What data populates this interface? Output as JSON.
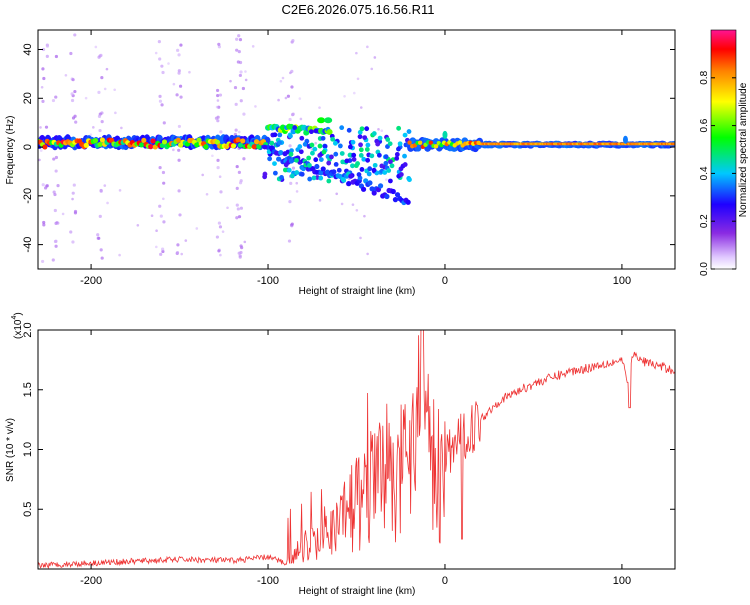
{
  "title": "C2E6.2026.075.16.56.R11",
  "chart_data": [
    {
      "type": "heatmap",
      "name": "spectrogram",
      "xlabel": "Height of straight line (km)",
      "ylabel": "Frequency (Hz)",
      "xlim": [
        -230,
        130
      ],
      "ylim": [
        -50,
        48
      ],
      "xticks": [
        -200,
        -100,
        0,
        100
      ],
      "yticks": [
        -40,
        -20,
        0,
        20,
        40
      ],
      "xtick_labels": [
        "-200",
        "-100",
        "0",
        "100"
      ],
      "ytick_labels": [
        "-40",
        "-20",
        "0",
        "20",
        "40"
      ],
      "colorbar": {
        "label": "Normalized spectral amplitude",
        "range": [
          0,
          1
        ],
        "ticks": [
          0.0,
          0.2,
          0.4,
          0.6,
          0.8
        ],
        "tick_labels": [
          "0.0",
          "0.2",
          "0.4",
          "0.6",
          "0.8"
        ]
      }
    },
    {
      "type": "line",
      "name": "snr",
      "xlabel": "Height of straight line (km)",
      "ylabel": "SNR (10 * v/v)",
      "scale_label": "(x10",
      "scale_exp": "4",
      "scale_close": ")",
      "xlim": [
        -230,
        130
      ],
      "ylim": [
        0,
        2.0
      ],
      "xticks": [
        -200,
        -100,
        0,
        100
      ],
      "yticks": [
        0.5,
        1.0,
        1.5,
        2.0
      ],
      "xtick_labels": [
        "-200",
        "-100",
        "0",
        "100"
      ],
      "ytick_labels": [
        "0.5",
        "1.0",
        "1.5",
        "2.0"
      ],
      "color": "#ee3333",
      "series": [
        {
          "name": "SNR",
          "x": [
            -230,
            -200,
            -150,
            -120,
            -100,
            -90,
            -80,
            -70,
            -60,
            -50,
            -45,
            -40,
            -35,
            -30,
            -25,
            -20,
            -15,
            -12,
            -10,
            -5,
            0,
            10,
            20,
            30,
            40,
            50,
            60,
            70,
            80,
            90,
            95,
            100,
            104,
            106,
            110,
            120,
            130
          ],
          "values": [
            0.03,
            0.05,
            0.08,
            0.07,
            0.1,
            0.05,
            0.25,
            0.35,
            0.45,
            0.7,
            0.9,
            1.0,
            1.05,
            1.1,
            1.15,
            1.2,
            1.3,
            1.45,
            1.3,
            1.1,
            0.95,
            1.1,
            1.25,
            1.4,
            1.48,
            1.55,
            1.6,
            1.65,
            1.68,
            1.72,
            1.73,
            1.75,
            1.5,
            1.8,
            1.75,
            1.7,
            1.66
          ]
        }
      ]
    }
  ]
}
